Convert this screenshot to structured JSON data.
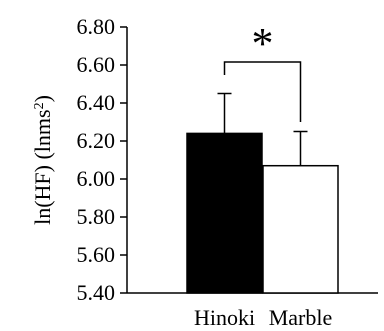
{
  "chart_data": {
    "type": "bar",
    "categories": [
      "Hinoki",
      "Marble"
    ],
    "values": [
      6.24,
      6.07
    ],
    "errors": [
      0.21,
      0.18
    ],
    "bar_colors": [
      "#000000",
      "#ffffff"
    ],
    "bar_edge_color": "#000000",
    "title": "",
    "xlabel": "",
    "ylabel_main": "ln(HF) (lnms",
    "ylabel_sup": "2",
    "ylabel_close": ")",
    "ylim": [
      5.4,
      6.8
    ],
    "yticks": [
      "5.40",
      "5.60",
      "5.80",
      "6.00",
      "6.20",
      "6.40",
      "6.60",
      "6.80"
    ],
    "grid": false,
    "legend": "none",
    "annotation": "*"
  }
}
